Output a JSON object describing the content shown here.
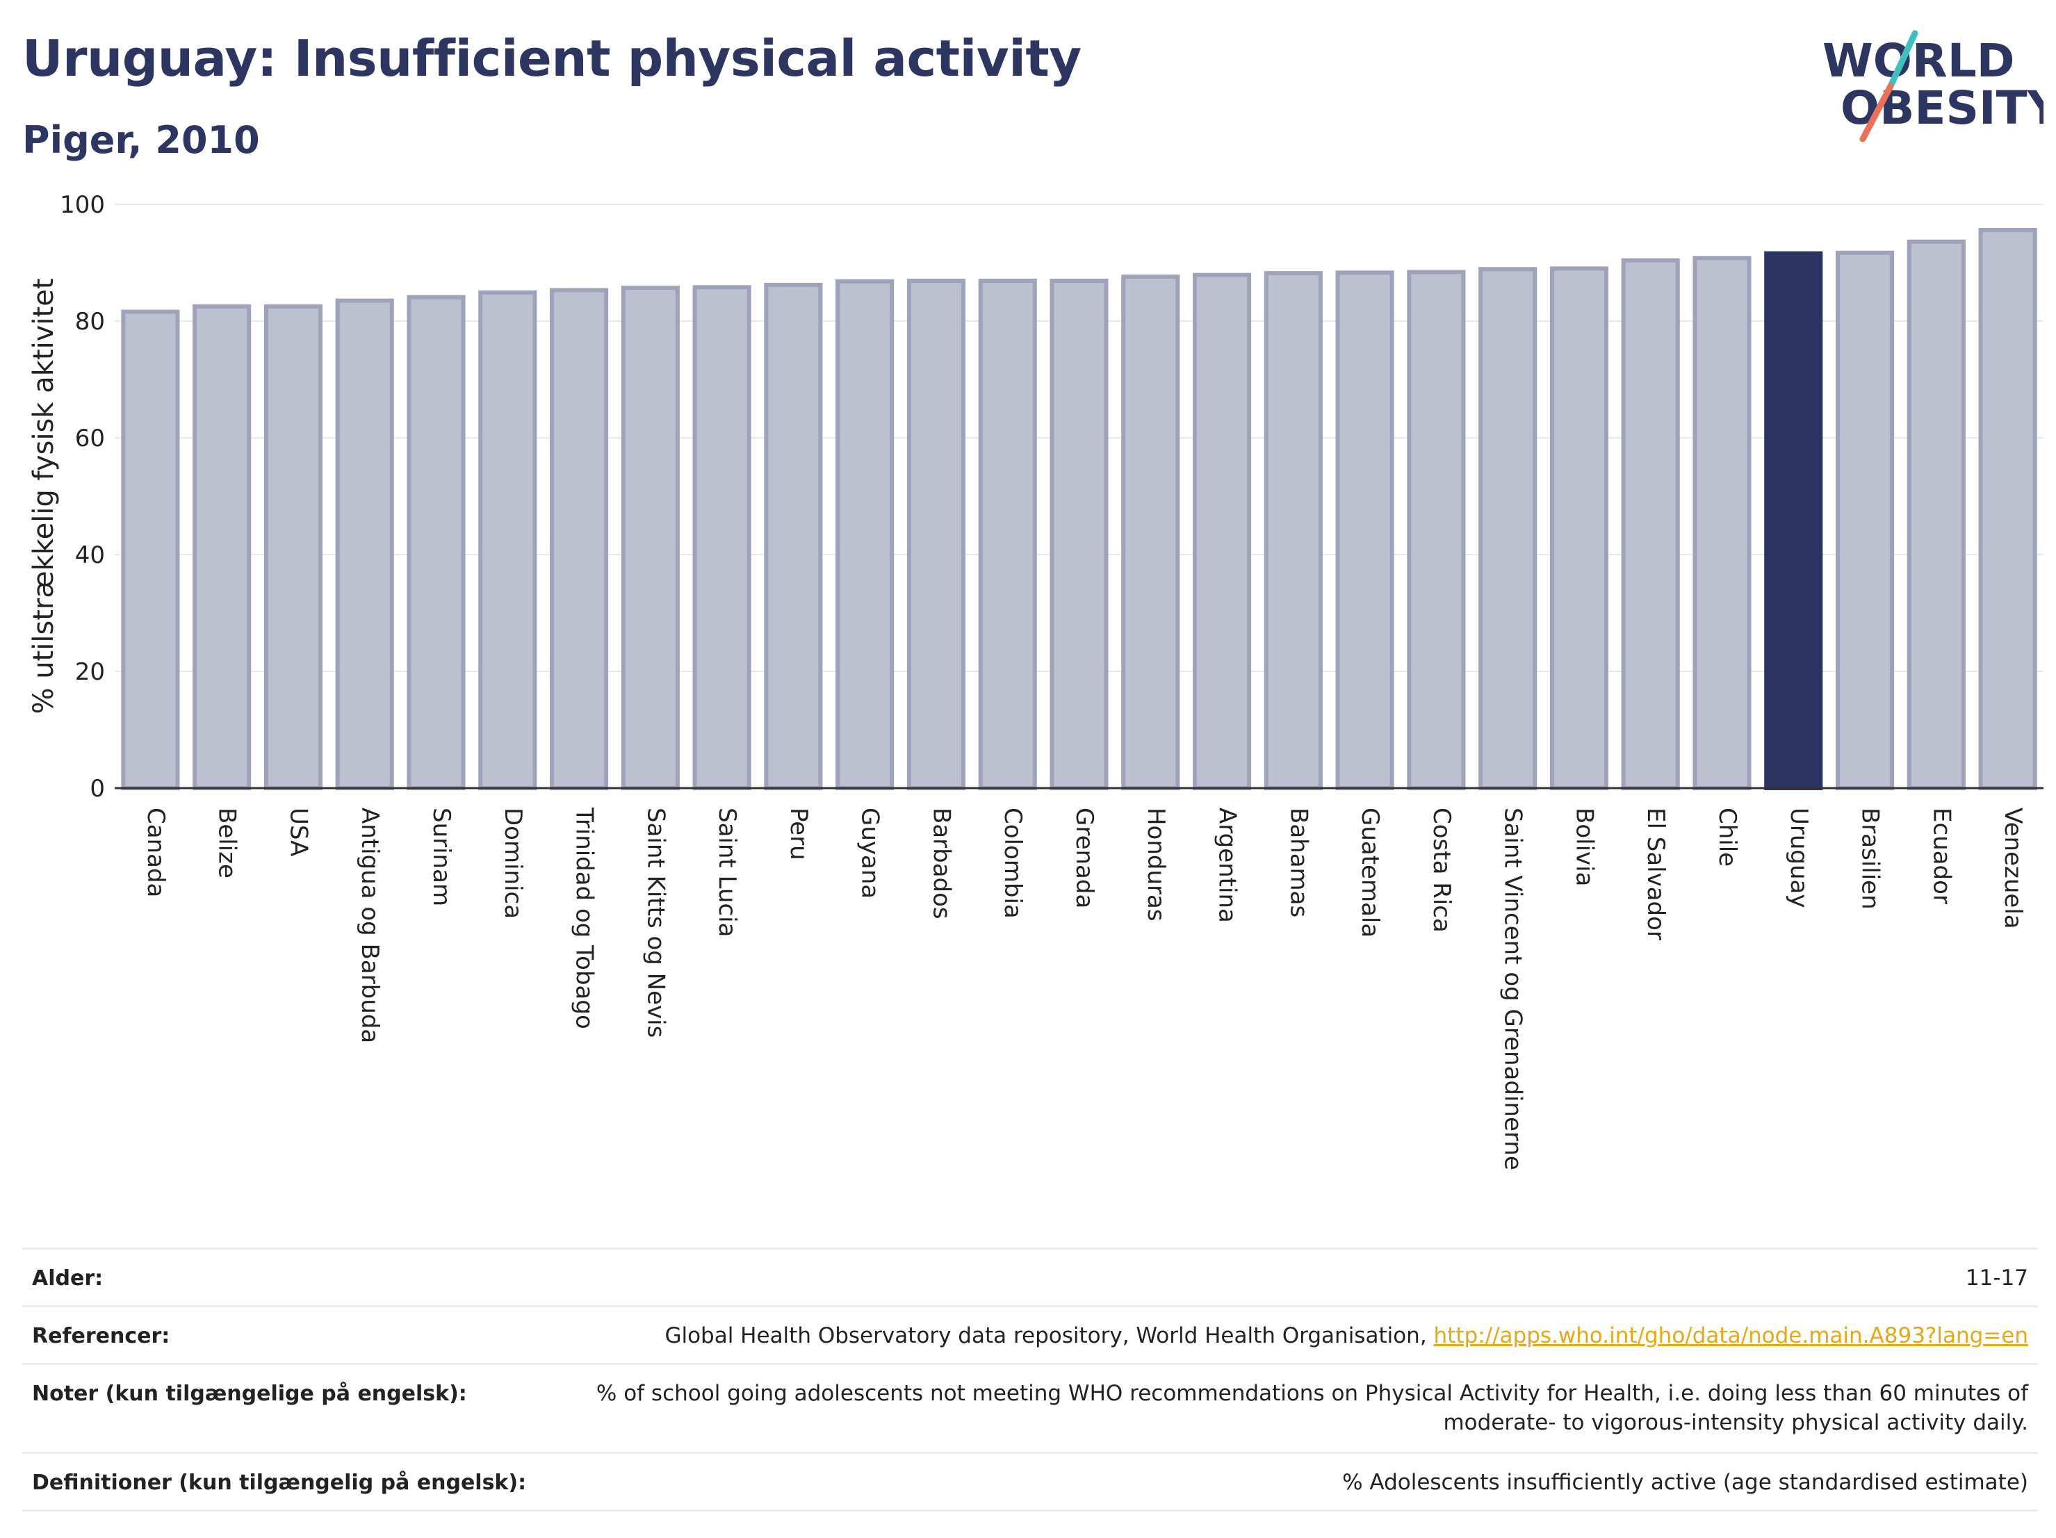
{
  "header": {
    "title": "Uruguay: Insufficient physical activity",
    "subtitle": "Piger, 2010"
  },
  "logo": {
    "line1": "WORLD",
    "line2": "OBESITY",
    "colors": {
      "text": "#2d3561",
      "slash_top": "#3fbfbf",
      "slash_bottom": "#e8715a"
    }
  },
  "chart_data": {
    "type": "bar",
    "title": "Uruguay: Insufficient physical activity",
    "subtitle": "Piger, 2010",
    "ylabel": "% utilstrækkelig fysisk aktivitet",
    "xlabel": "",
    "ylim": [
      0,
      100
    ],
    "yticks": [
      0,
      20,
      40,
      60,
      80,
      100
    ],
    "grid": true,
    "highlight": "Uruguay",
    "colors": {
      "bar": "#bcc0cf",
      "bar_border": "#9ea3bb",
      "highlight": "#2b3461"
    },
    "categories": [
      "Canada",
      "Belize",
      "USA",
      "Antigua og Barbuda",
      "Surinam",
      "Dominica",
      "Trinidad og Tobago",
      "Saint Kitts og Nevis",
      "Saint Lucia",
      "Peru",
      "Guyana",
      "Barbados",
      "Colombia",
      "Grenada",
      "Honduras",
      "Argentina",
      "Bahamas",
      "Guatemala",
      "Costa Rica",
      "Saint Vincent og Grenadinerne",
      "Bolivia",
      "El Salvador",
      "Chile",
      "Uruguay",
      "Brasilien",
      "Ecuador",
      "Venezuela"
    ],
    "values": [
      81.6,
      82.5,
      82.5,
      83.5,
      84.1,
      84.9,
      85.3,
      85.7,
      85.8,
      86.2,
      86.8,
      86.9,
      86.9,
      86.9,
      87.6,
      87.9,
      88.2,
      88.3,
      88.4,
      88.9,
      89.0,
      90.4,
      90.8,
      91.6,
      91.7,
      93.6,
      95.6
    ]
  },
  "footer": {
    "rows": [
      {
        "label": "Alder:",
        "value": "11-17"
      },
      {
        "label": "Referencer:",
        "value": "Global Health Observatory data repository, World Health Organisation, ",
        "link": "http://apps.who.int/gho/data/node.main.A893?lang=en"
      },
      {
        "label": "Noter (kun tilgængelige på engelsk):",
        "value": "% of school going adolescents not meeting WHO recommendations on Physical Activity for Health, i.e. doing less than 60 minutes of moderate- to vigorous-intensity physical activity daily."
      },
      {
        "label": "Definitioner (kun tilgængelig på engelsk):",
        "value": "% Adolescents insufficiently active (age standardised estimate)"
      }
    ]
  }
}
